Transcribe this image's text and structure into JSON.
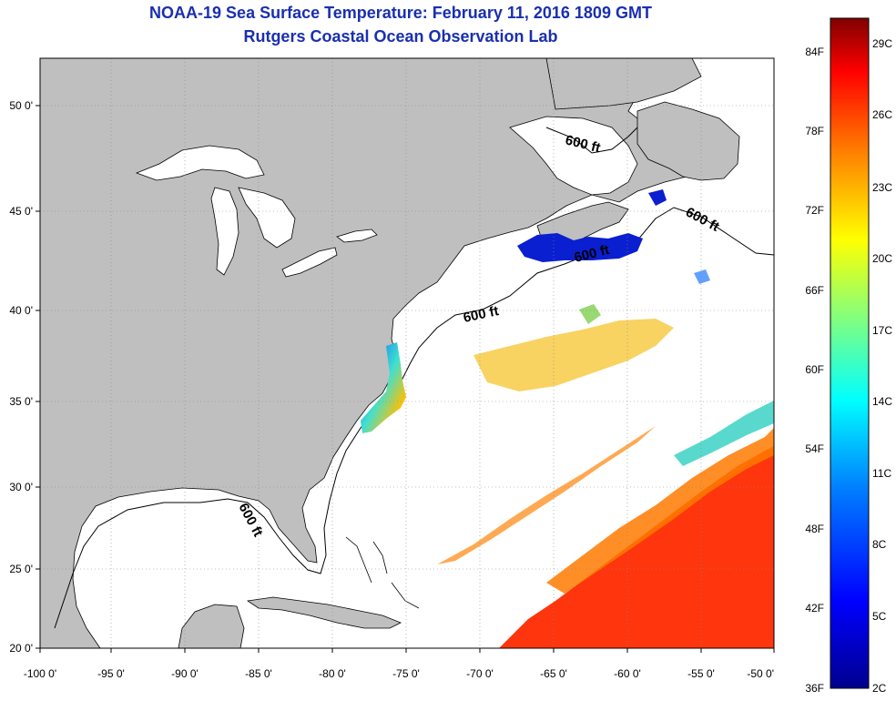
{
  "title_line1": "NOAA-19 Sea Surface Temperature:  February 11, 2016 1809 GMT",
  "title_line2": "Rutgers Coastal Ocean Observation Lab",
  "map": {
    "lon_range": [
      -100,
      -50
    ],
    "lat_range": [
      20,
      52.5
    ],
    "grid": true,
    "lon_ticks": [
      "-100 0'",
      "-95 0'",
      "-90 0'",
      "-85 0'",
      "-80 0'",
      "-75 0'",
      "-70 0'",
      "-65 0'",
      "-60 0'",
      "-55 0'",
      "-50 0'"
    ],
    "lat_ticks": [
      "50 0'",
      "45 0'",
      "40 0'",
      "35 0'",
      "30 0'",
      "25 0'",
      "20 0'"
    ],
    "contour_label": "600 ft",
    "land_color": "#bfbfbf",
    "ocean_color": "#ffffff"
  },
  "colorbar": {
    "f_labels": [
      "84F",
      "78F",
      "72F",
      "66F",
      "60F",
      "54F",
      "48F",
      "42F",
      "36F"
    ],
    "c_labels": [
      "29C",
      "26C",
      "23C",
      "20C",
      "17C",
      "14C",
      "11C",
      "8C",
      "5C",
      "2C"
    ],
    "colors": [
      "#00008f",
      "#0000ff",
      "#0080ff",
      "#00ffff",
      "#80ff80",
      "#ffff00",
      "#ff8000",
      "#ff0000",
      "#800000"
    ]
  }
}
